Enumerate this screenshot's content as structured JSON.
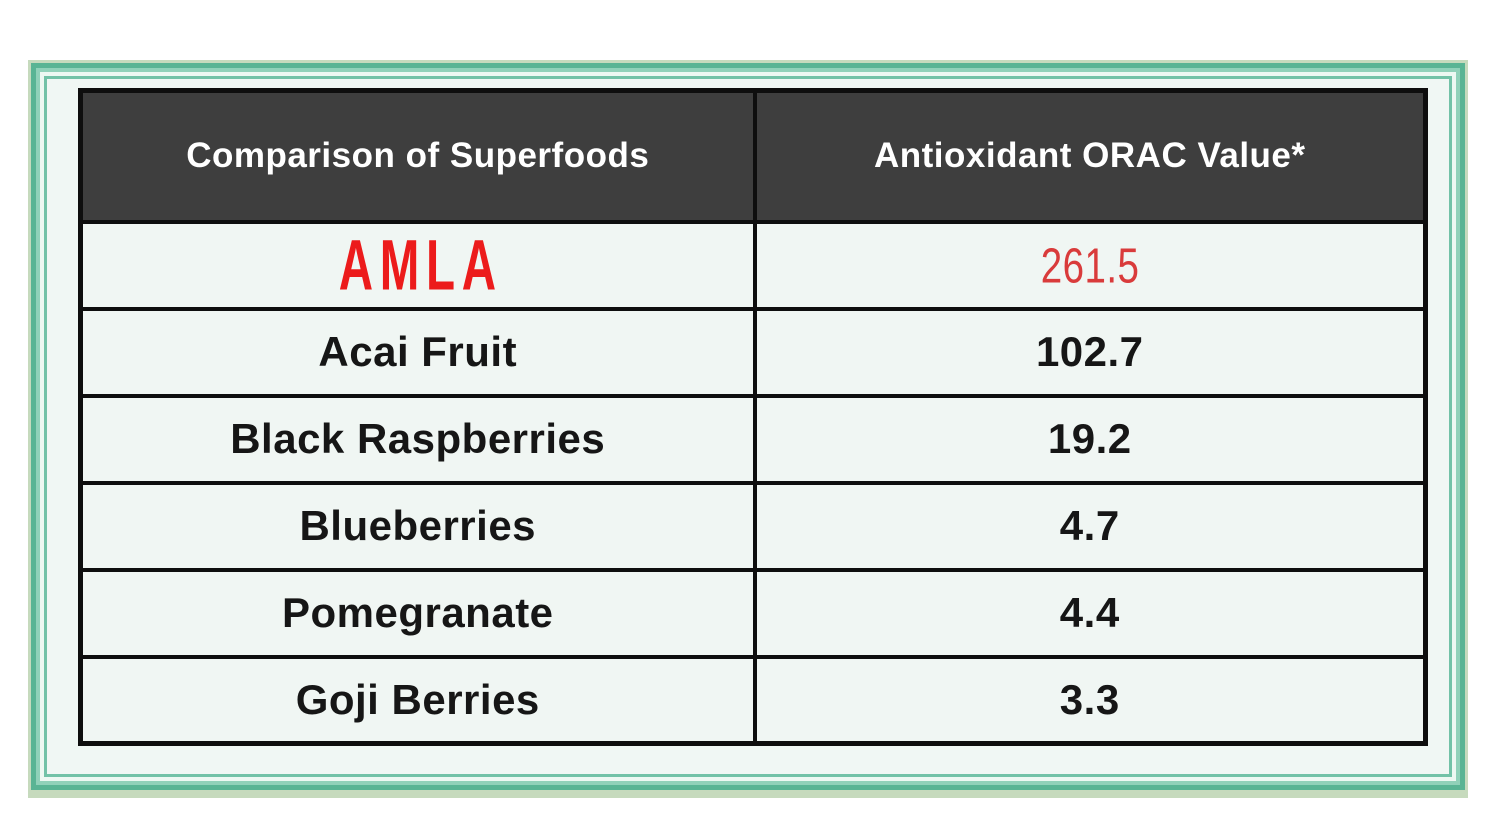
{
  "table": {
    "headers": [
      "Comparison of Superfoods",
      "Antioxidant ORAC Value*"
    ],
    "rows": [
      {
        "name": "AMLA",
        "value": "261.5",
        "highlight": true
      },
      {
        "name": "Acai Fruit",
        "value": "102.7",
        "highlight": false
      },
      {
        "name": "Black Raspberries",
        "value": "19.2",
        "highlight": false
      },
      {
        "name": "Blueberries",
        "value": "4.7",
        "highlight": false
      },
      {
        "name": "Pomegranate",
        "value": "4.4",
        "highlight": false
      },
      {
        "name": "Goji Berries",
        "value": "3.3",
        "highlight": false
      }
    ]
  },
  "colors": {
    "header_bg": "#3e3e3e",
    "header_text": "#ffffff",
    "row_bg": "#f0f6f3",
    "table_border": "#0e0e0e",
    "highlight_name_red": "#ec1b1b",
    "highlight_value_red": "#d93b3b",
    "frame_sage": "#c6dabd",
    "frame_teal": "#59b494",
    "frame_light_teal": "#90d1b9",
    "frame_pale_line": "#edf8f2",
    "frame_inner_teal": "#72c2a7",
    "mat_bg": "#f0f7f4"
  },
  "chart_data": {
    "type": "table",
    "title": "Comparison of Superfoods",
    "columns": [
      "Comparison of Superfoods",
      "Antioxidant ORAC Value*"
    ],
    "rows": [
      [
        "AMLA",
        261.5
      ],
      [
        "Acai Fruit",
        102.7
      ],
      [
        "Black Raspberries",
        19.2
      ],
      [
        "Blueberries",
        4.7
      ],
      [
        "Pomegranate",
        4.4
      ],
      [
        "Goji Berries",
        3.3
      ]
    ],
    "highlighted_row": "AMLA",
    "notes": "Asterisk on 'Antioxidant ORAC Value*' column header; AMLA row emphasized in red"
  }
}
